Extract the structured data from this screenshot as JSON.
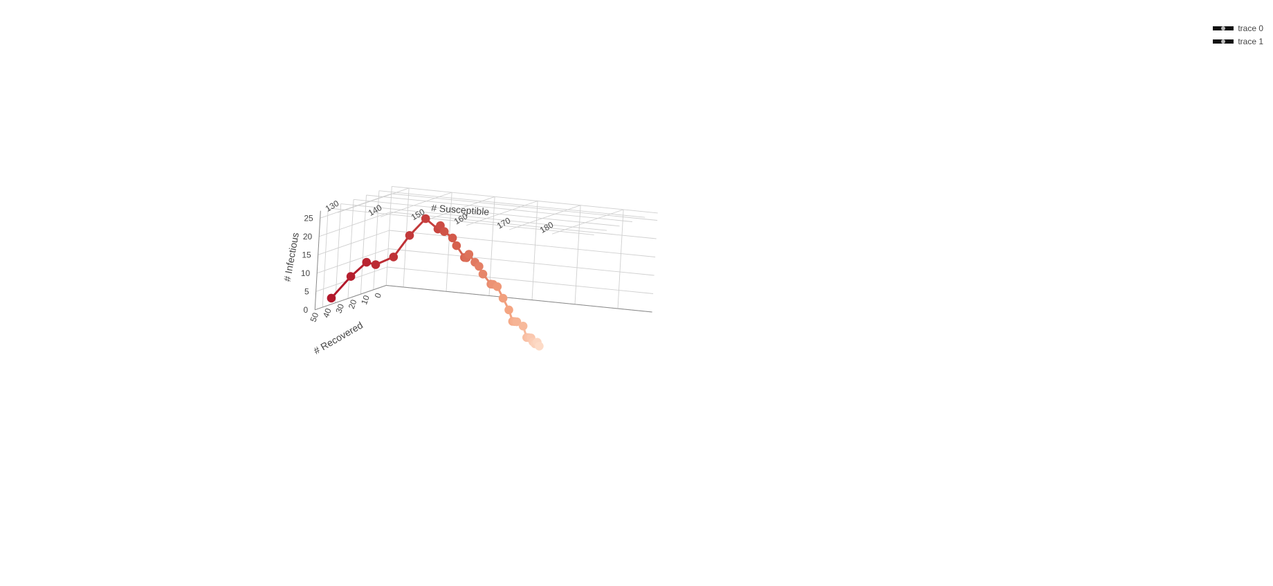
{
  "chart_data": {
    "type": "scatter3d",
    "axes": {
      "x": {
        "label": "# Susceptible",
        "ticks": [
          130,
          140,
          150,
          160,
          170,
          180
        ],
        "range": [
          126,
          188
        ]
      },
      "y": {
        "label": "# Recovered",
        "ticks": [
          0,
          10,
          20,
          30,
          40,
          50
        ],
        "range": [
          0,
          56
        ]
      },
      "z": {
        "label": "# Infectious",
        "ticks": [
          0,
          5,
          10,
          15,
          20,
          25
        ],
        "range": [
          0,
          27
        ]
      }
    },
    "grid": true,
    "legend_position": "top-right",
    "colorscale": [
      "#b2182b",
      "#d6604d",
      "#f4a582",
      "#fddbc7"
    ],
    "series": [
      {
        "name": "trace 0",
        "mode": "lines+markers",
        "line_color": "#b2182b"
      },
      {
        "name": "trace 1",
        "mode": "markers"
      }
    ],
    "points": [
      {
        "x": 128.5,
        "y": 52,
        "z": 3.0
      },
      {
        "x": 131.0,
        "y": 46,
        "z": 8.5
      },
      {
        "x": 133.0,
        "y": 41,
        "z": 12.0
      },
      {
        "x": 134.0,
        "y": 37,
        "z": 11.0
      },
      {
        "x": 136.0,
        "y": 30,
        "z": 12.5
      },
      {
        "x": 138.0,
        "y": 25,
        "z": 18.0
      },
      {
        "x": 141.5,
        "y": 25,
        "z": 23.0
      },
      {
        "x": 144.5,
        "y": 25,
        "z": 20.5
      },
      {
        "x": 145.0,
        "y": 25,
        "z": 21.5
      },
      {
        "x": 146.0,
        "y": 25,
        "z": 20.0
      },
      {
        "x": 148.0,
        "y": 25,
        "z": 18.5
      },
      {
        "x": 149.0,
        "y": 25,
        "z": 16.5
      },
      {
        "x": 151.0,
        "y": 25,
        "z": 13.5
      },
      {
        "x": 151.5,
        "y": 25,
        "z": 13.5
      },
      {
        "x": 152.0,
        "y": 25,
        "z": 14.5
      },
      {
        "x": 153.5,
        "y": 25,
        "z": 12.5
      },
      {
        "x": 154.5,
        "y": 25,
        "z": 11.5
      },
      {
        "x": 155.5,
        "y": 25,
        "z": 9.5
      },
      {
        "x": 157.5,
        "y": 25,
        "z": 7.0
      },
      {
        "x": 158.0,
        "y": 25,
        "z": 7.0
      },
      {
        "x": 159.0,
        "y": 25,
        "z": 6.5
      },
      {
        "x": 160.5,
        "y": 25,
        "z": 3.5
      },
      {
        "x": 162.0,
        "y": 25,
        "z": 0.5
      },
      {
        "x": 163.0,
        "y": 25,
        "z": -2.5
      },
      {
        "x": 163.5,
        "y": 25,
        "z": -2.5
      },
      {
        "x": 164.0,
        "y": 25,
        "z": -2.5
      },
      {
        "x": 165.5,
        "y": 25,
        "z": -3.5
      },
      {
        "x": 166.5,
        "y": 25,
        "z": -6.5
      },
      {
        "x": 167.0,
        "y": 25,
        "z": -6.5
      },
      {
        "x": 167.5,
        "y": 25,
        "z": -6.5
      },
      {
        "x": 168.0,
        "y": 25,
        "z": -7.5
      },
      {
        "x": 168.5,
        "y": 25,
        "z": -8.0
      },
      {
        "x": 169.0,
        "y": 25,
        "z": -7.5
      },
      {
        "x": 169.5,
        "y": 25,
        "z": -8.5
      }
    ]
  },
  "legend": {
    "items": [
      {
        "label": "trace 0"
      },
      {
        "label": "trace 1"
      }
    ]
  }
}
